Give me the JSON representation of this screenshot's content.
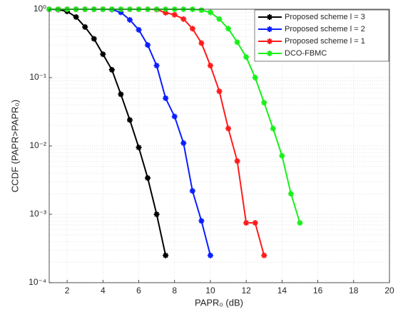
{
  "chart_data": {
    "type": "line",
    "xlabel": "PAPR₀ (dB)",
    "ylabel": "CCDF (PAPR>PAPR₀)",
    "x": [
      1,
      1.5,
      2,
      2.5,
      3,
      3.5,
      4,
      4.5,
      5,
      5.5,
      6,
      6.5,
      7,
      7.5,
      8,
      8.5,
      9,
      9.5,
      10,
      10.5,
      11,
      11.5,
      12,
      12.5,
      13,
      13.5,
      14,
      14.5,
      15
    ],
    "series": [
      {
        "name": "Proposed scheme l = 3",
        "color": "#000000",
        "values": [
          1,
          0.99,
          0.93,
          0.77,
          0.55,
          0.37,
          0.22,
          0.13,
          0.057,
          0.024,
          0.0095,
          0.0034,
          0.001,
          0.00025,
          null,
          null,
          null,
          null,
          null,
          null,
          null,
          null,
          null,
          null,
          null,
          null,
          null,
          null,
          null
        ]
      },
      {
        "name": "Proposed scheme l = 2",
        "color": "#0a1eff",
        "values": [
          1,
          1,
          1,
          1,
          1,
          1,
          1,
          0.99,
          0.9,
          0.7,
          0.5,
          0.3,
          0.15,
          0.05,
          0.027,
          0.011,
          0.0022,
          0.0008,
          0.00025,
          null,
          null,
          null,
          null,
          null,
          null,
          null,
          null,
          null,
          null
        ]
      },
      {
        "name": "Proposed scheme l = 1",
        "color": "#ff1a1a",
        "values": [
          1,
          1,
          1,
          1,
          1,
          1,
          1,
          1,
          1,
          1,
          1,
          1,
          0.99,
          0.89,
          0.83,
          0.72,
          0.52,
          0.32,
          0.15,
          0.063,
          0.018,
          0.006,
          0.00075,
          0.00075,
          0.00025,
          null,
          null,
          null,
          null
        ]
      },
      {
        "name": "DCO-FBMC",
        "color": "#19f019",
        "values": [
          1,
          1,
          1,
          1,
          1,
          1,
          1,
          1,
          1,
          1,
          1,
          1,
          1,
          1,
          1,
          1,
          1,
          0.97,
          0.9,
          0.72,
          0.52,
          0.33,
          0.2,
          0.1,
          0.043,
          0.018,
          0.0072,
          0.002,
          0.00075
        ]
      }
    ],
    "xlim": [
      1,
      20
    ],
    "xticks": [
      2,
      4,
      6,
      8,
      10,
      12,
      14,
      16,
      18,
      20
    ],
    "ylim": [
      0.0001,
      1
    ],
    "yticks": [
      {
        "value": 0.0001,
        "label": "10⁻⁴"
      },
      {
        "value": 0.001,
        "label": "10⁻³"
      },
      {
        "value": 0.01,
        "label": "10⁻²"
      },
      {
        "value": 0.1,
        "label": "10⁻¹"
      },
      {
        "value": 1,
        "label": "10⁰"
      }
    ],
    "log_y": true,
    "grid": true,
    "legend": "upper right"
  }
}
